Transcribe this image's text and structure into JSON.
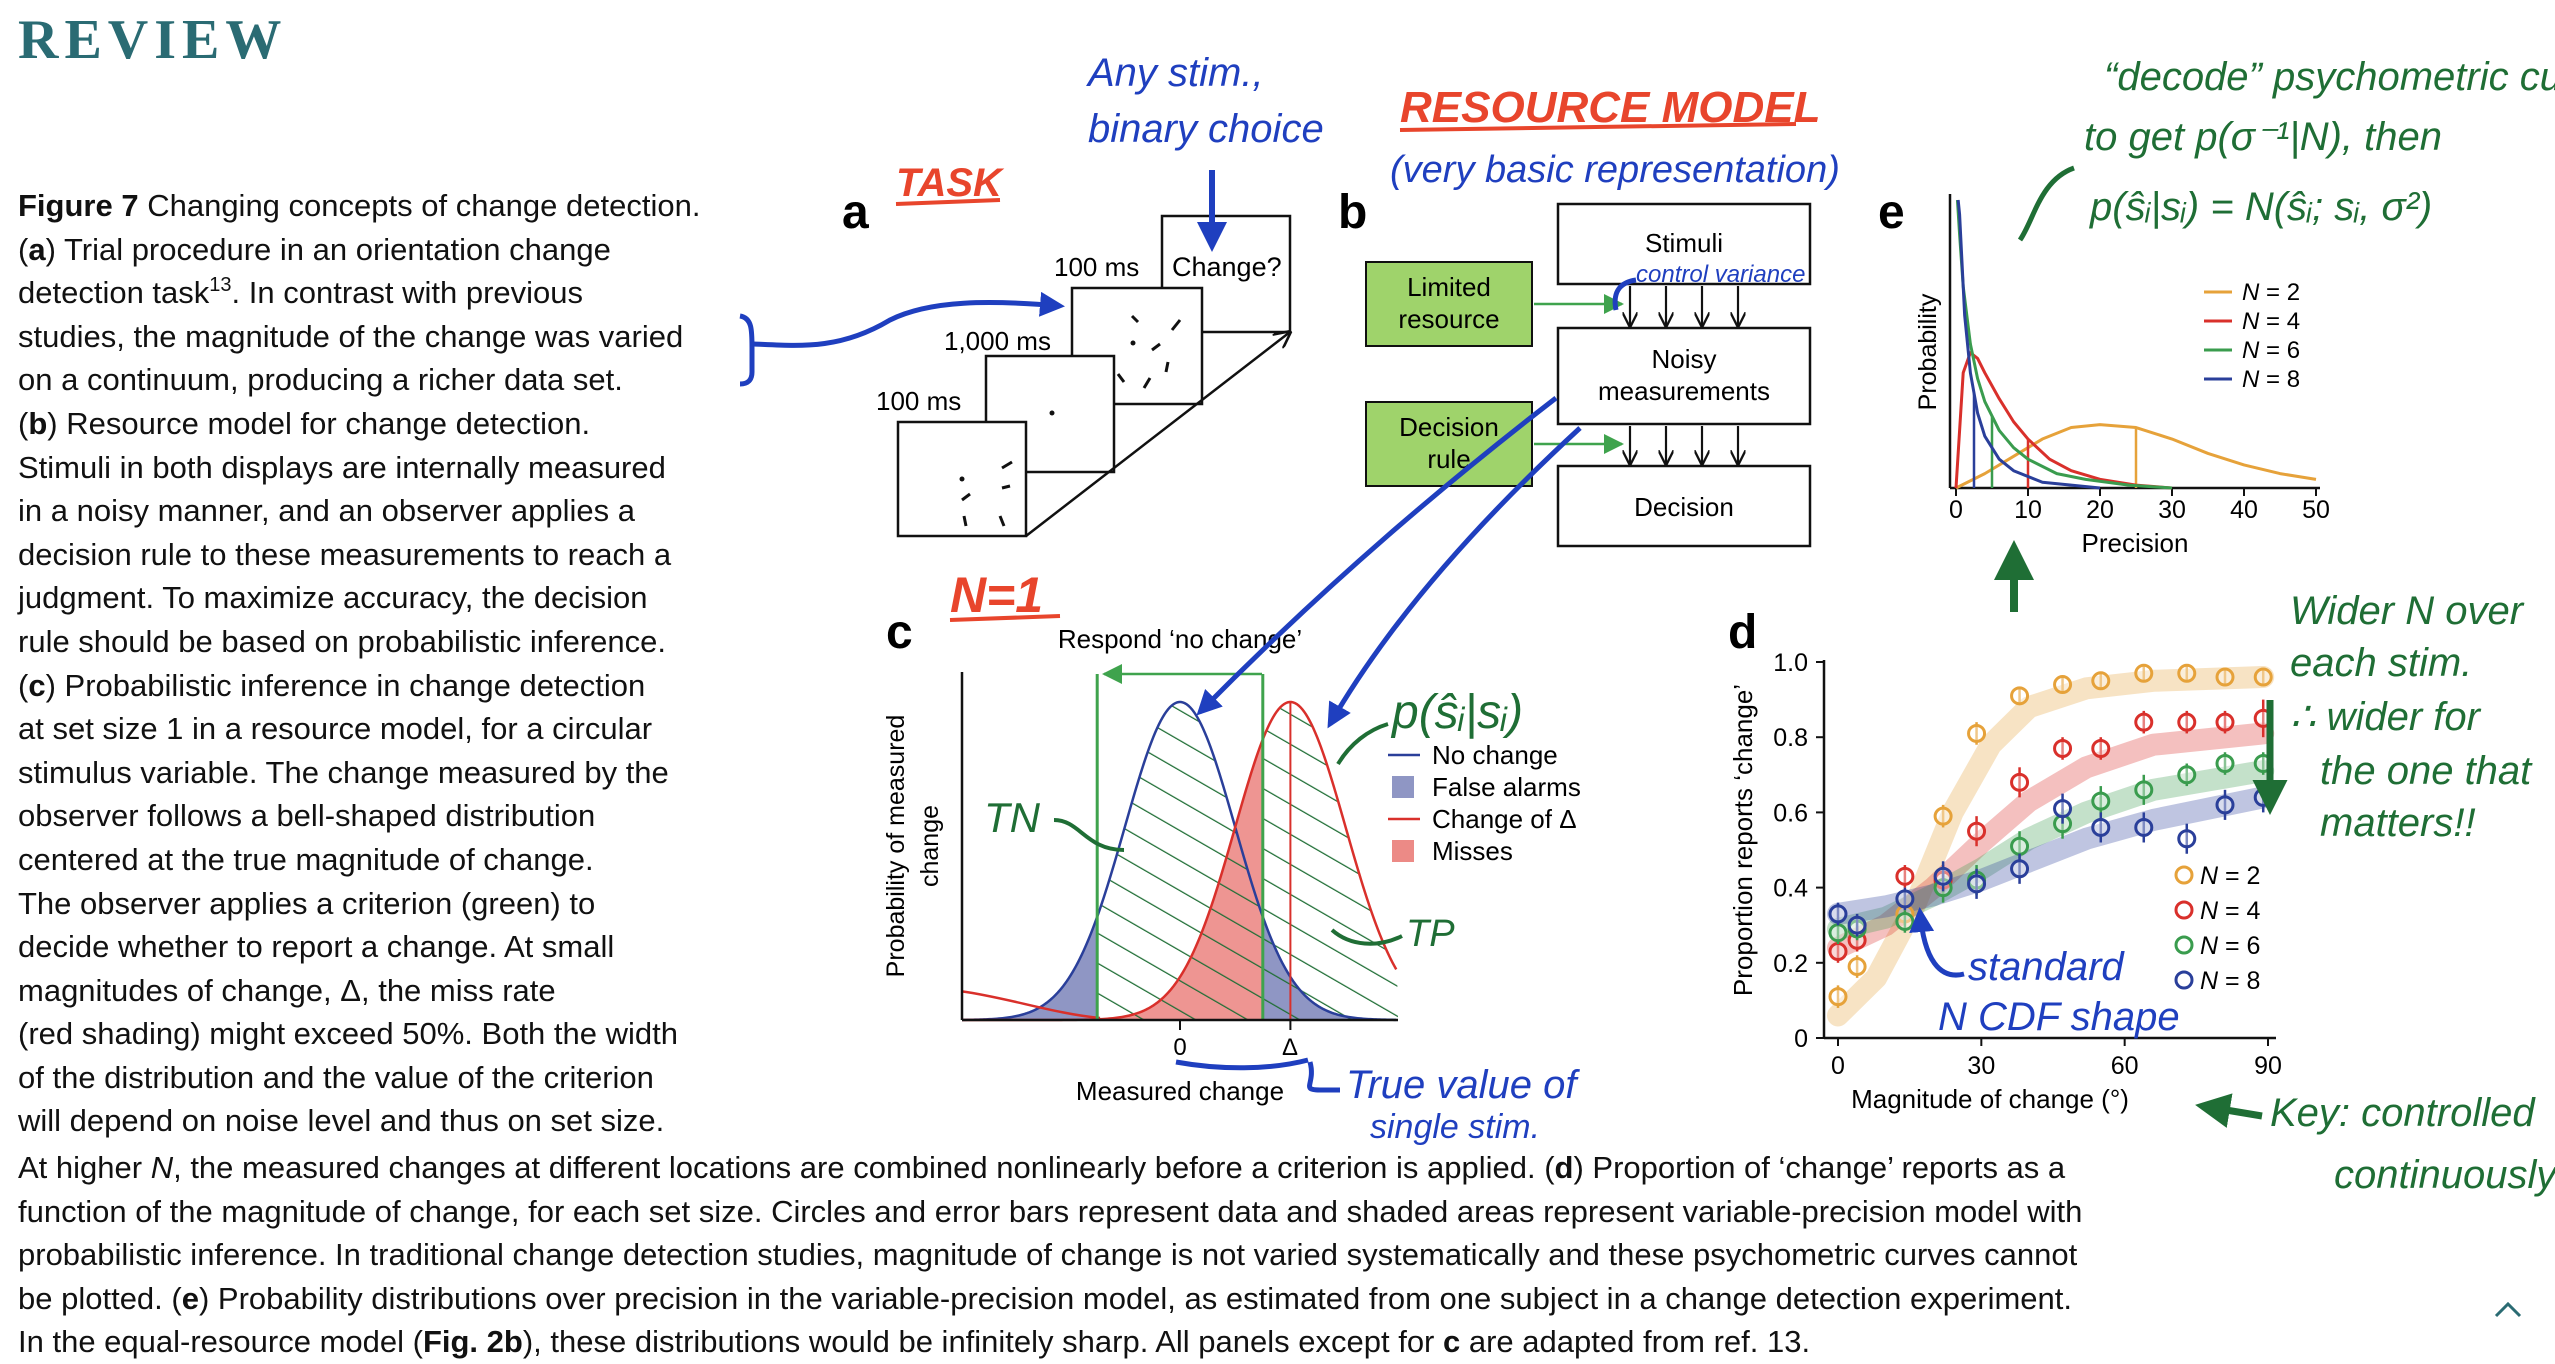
{
  "header": {
    "journal_section": "REVIEW"
  },
  "caption": {
    "side_lines": [
      [
        {
          "t": "Figure 7",
          "b": true
        },
        {
          "t": "  Changing concepts of change detection."
        }
      ],
      [
        {
          "t": "("
        },
        {
          "t": "a",
          "b": true
        },
        {
          "t": ") Trial procedure in an orientation change"
        }
      ],
      [
        {
          "t": "detection task"
        },
        {
          "t": "13",
          "sup": true
        },
        {
          "t": ". In contrast with previous"
        }
      ],
      [
        {
          "t": "studies, the magnitude of the change was varied"
        }
      ],
      [
        {
          "t": "on a continuum, producing a richer data set."
        }
      ],
      [
        {
          "t": "("
        },
        {
          "t": "b",
          "b": true
        },
        {
          "t": ") Resource model for change detection."
        }
      ],
      [
        {
          "t": "Stimuli in both displays are internally measured"
        }
      ],
      [
        {
          "t": "in a noisy manner, and an observer applies a"
        }
      ],
      [
        {
          "t": "decision rule to these measurements to reach a"
        }
      ],
      [
        {
          "t": "judgment. To maximize accuracy, the decision"
        }
      ],
      [
        {
          "t": "rule should be based on probabilistic inference."
        }
      ],
      [
        {
          "t": "("
        },
        {
          "t": "c",
          "b": true
        },
        {
          "t": ") Probabilistic inference in change detection"
        }
      ],
      [
        {
          "t": "at set size 1 in a resource model, for a circular"
        }
      ],
      [
        {
          "t": "stimulus variable. The change measured by the"
        }
      ],
      [
        {
          "t": "observer follows a bell-shaped distribution"
        }
      ],
      [
        {
          "t": "centered at the true magnitude of change."
        }
      ],
      [
        {
          "t": "The observer applies a criterion (green) to"
        }
      ],
      [
        {
          "t": "decide whether to report a change. At small"
        }
      ],
      [
        {
          "t": "magnitudes of change, Δ, the miss rate"
        }
      ],
      [
        {
          "t": "(red shading) might exceed 50%. Both the width"
        }
      ],
      [
        {
          "t": "of the distribution and the value of the criterion"
        }
      ],
      [
        {
          "t": "will depend on noise level and thus on set size."
        }
      ]
    ],
    "bottom_lines": [
      [
        {
          "t": "At higher "
        },
        {
          "t": "N",
          "i": true
        },
        {
          "t": ", the measured changes at different locations are combined nonlinearly before a criterion is applied. ("
        },
        {
          "t": "d",
          "b": true
        },
        {
          "t": ") Proportion of ‘change’ reports as a"
        }
      ],
      [
        {
          "t": "function of the magnitude of change, for each set size. Circles and error bars represent data and shaded areas represent variable-precision model with"
        }
      ],
      [
        {
          "t": "probabilistic inference. In traditional change detection studies, magnitude of change is not varied systematically and these psychometric curves cannot"
        }
      ],
      [
        {
          "t": "be plotted. ("
        },
        {
          "t": "e",
          "b": true
        },
        {
          "t": ") Probability distributions over precision in the variable-precision model, as estimated from one subject in a change detection experiment."
        }
      ],
      [
        {
          "t": "In the equal-resource model ("
        },
        {
          "t": "Fig. 2b",
          "b": true
        },
        {
          "t": "), these distributions would be infinitely sharp. All panels except for "
        },
        {
          "t": "c",
          "b": true
        },
        {
          "t": " are adapted from ref. 13."
        }
      ]
    ]
  },
  "panels": {
    "a": {
      "label": "a",
      "times": [
        "100 ms",
        "1,000 ms",
        "100 ms"
      ],
      "question": "Change?"
    },
    "b": {
      "label": "b",
      "stimuli": "Stimuli",
      "noisy": [
        "Noisy",
        "measurements"
      ],
      "decision": "Decision",
      "limited": [
        "Limited",
        "resource"
      ],
      "rule": [
        "Decision",
        "rule"
      ]
    },
    "c": {
      "label": "c",
      "respond": "Respond ‘no change’",
      "ylabel": [
        "Probability of measured",
        "change"
      ],
      "xlabel": "Measured change",
      "tick_zero": "0",
      "tick_delta": "Δ",
      "legend": [
        "No change",
        "False alarms",
        "Change of Δ",
        "Misses"
      ]
    },
    "d": {
      "label": "d",
      "ylabel": "Proportion reports ‘change’",
      "xlabel": "Magnitude of change (°)",
      "legend_prefix": "N",
      "legend_values": [
        "= 2",
        "= 4",
        "= 6",
        "= 8"
      ]
    },
    "e": {
      "label": "e",
      "ylabel": "Probability",
      "xlabel": "Precision",
      "legend_prefix": "N",
      "legend_values": [
        "= 2",
        "= 4",
        "= 6",
        "= 8"
      ]
    }
  },
  "colors": {
    "review": "#2a6b73",
    "n2": "#e6a23a",
    "n4": "#d9302b",
    "n6": "#3a9c4e",
    "n8": "#2a3f9a",
    "box_green": "#9fd36b",
    "ink_blue": "#1f3fbf",
    "ink_red": "#e8452c",
    "ink_green": "#1f6e35",
    "fa_fill": "#8f96c4",
    "miss_fill": "#ec8a86",
    "criterion": "#3fa34d"
  },
  "chart_data": [
    {
      "panel": "d",
      "type": "scatter",
      "xlabel": "Magnitude of change (°)",
      "ylabel": "Proportion reports ‘change’",
      "xlim": [
        0,
        90
      ],
      "ylim": [
        0,
        1
      ],
      "xticks": [
        0,
        30,
        60,
        90
      ],
      "yticks": [
        0,
        0.2,
        0.4,
        0.6,
        0.8,
        1.0
      ],
      "legend_position": "bottom-right",
      "series": [
        {
          "name": "N = 2",
          "color": "#e6a23a",
          "x": [
            0,
            4,
            14,
            22,
            29,
            38,
            47,
            55,
            64,
            73,
            81,
            89
          ],
          "y": [
            0.11,
            0.19,
            0.33,
            0.59,
            0.81,
            0.91,
            0.94,
            0.95,
            0.97,
            0.97,
            0.96,
            0.96
          ],
          "err": [
            0.03,
            0.03,
            0.03,
            0.03,
            0.03,
            0.02,
            0.02,
            0.02,
            0.02,
            0.02,
            0.02,
            0.02
          ],
          "model": [
            [
              0,
              0.06
            ],
            [
              8,
              0.16
            ],
            [
              16,
              0.35
            ],
            [
              24,
              0.6
            ],
            [
              32,
              0.78
            ],
            [
              40,
              0.88
            ],
            [
              52,
              0.93
            ],
            [
              66,
              0.95
            ],
            [
              89,
              0.96
            ]
          ]
        },
        {
          "name": "N = 4",
          "color": "#d9302b",
          "x": [
            0,
            4,
            14,
            22,
            29,
            38,
            47,
            55,
            64,
            73,
            81,
            89
          ],
          "y": [
            0.23,
            0.26,
            0.43,
            0.42,
            0.55,
            0.68,
            0.77,
            0.77,
            0.84,
            0.84,
            0.84,
            0.85
          ],
          "err": [
            0.03,
            0.03,
            0.03,
            0.04,
            0.04,
            0.04,
            0.03,
            0.03,
            0.03,
            0.03,
            0.03,
            0.05
          ],
          "model": [
            [
              0,
              0.24
            ],
            [
              10,
              0.3
            ],
            [
              20,
              0.4
            ],
            [
              30,
              0.52
            ],
            [
              40,
              0.63
            ],
            [
              52,
              0.72
            ],
            [
              66,
              0.78
            ],
            [
              89,
              0.81
            ]
          ]
        },
        {
          "name": "N = 6",
          "color": "#3a9c4e",
          "x": [
            0,
            4,
            14,
            22,
            29,
            38,
            47,
            55,
            64,
            73,
            81,
            89
          ],
          "y": [
            0.28,
            0.29,
            0.31,
            0.4,
            0.42,
            0.51,
            0.57,
            0.63,
            0.66,
            0.7,
            0.73,
            0.73
          ],
          "err": [
            0.03,
            0.03,
            0.03,
            0.04,
            0.04,
            0.04,
            0.04,
            0.04,
            0.04,
            0.03,
            0.03,
            0.03
          ],
          "model": [
            [
              0,
              0.29
            ],
            [
              10,
              0.32
            ],
            [
              20,
              0.38
            ],
            [
              30,
              0.45
            ],
            [
              40,
              0.53
            ],
            [
              52,
              0.6
            ],
            [
              66,
              0.66
            ],
            [
              89,
              0.71
            ]
          ]
        },
        {
          "name": "N = 8",
          "color": "#2a3f9a",
          "x": [
            0,
            4,
            14,
            22,
            29,
            38,
            47,
            55,
            64,
            73,
            81,
            89
          ],
          "y": [
            0.33,
            0.3,
            0.37,
            0.43,
            0.41,
            0.45,
            0.61,
            0.56,
            0.56,
            0.53,
            0.62,
            0.64
          ],
          "err": [
            0.03,
            0.03,
            0.03,
            0.04,
            0.04,
            0.04,
            0.04,
            0.04,
            0.04,
            0.04,
            0.04,
            0.04
          ],
          "model": [
            [
              0,
              0.33
            ],
            [
              10,
              0.35
            ],
            [
              20,
              0.38
            ],
            [
              30,
              0.42
            ],
            [
              40,
              0.47
            ],
            [
              52,
              0.53
            ],
            [
              66,
              0.58
            ],
            [
              89,
              0.64
            ]
          ]
        }
      ]
    },
    {
      "panel": "e",
      "type": "line",
      "xlabel": "Precision",
      "ylabel": "Probability",
      "xlim": [
        0,
        50
      ],
      "ylim": [
        0,
        1
      ],
      "xticks": [
        0,
        10,
        20,
        30,
        40,
        50
      ],
      "legend_position": "top-right",
      "series": [
        {
          "name": "N = 2",
          "color": "#e6a23a",
          "mean": 25,
          "x": [
            0,
            4,
            8,
            12,
            16,
            20,
            25,
            30,
            35,
            40,
            45,
            50
          ],
          "y": [
            0.0,
            0.05,
            0.11,
            0.17,
            0.21,
            0.22,
            0.21,
            0.17,
            0.12,
            0.08,
            0.05,
            0.03
          ]
        },
        {
          "name": "N = 4",
          "color": "#d9302b",
          "mean": 10,
          "x": [
            0,
            1,
            2,
            3,
            4,
            6,
            8,
            10,
            13,
            16,
            20,
            25,
            30
          ],
          "y": [
            0.0,
            0.4,
            0.47,
            0.45,
            0.4,
            0.31,
            0.23,
            0.17,
            0.1,
            0.06,
            0.03,
            0.01,
            0.0
          ]
        },
        {
          "name": "N = 6",
          "color": "#3a9c4e",
          "mean": 5,
          "x": [
            0.2,
            0.5,
            1,
            2,
            3,
            4,
            6,
            8,
            10,
            14,
            18,
            24,
            30
          ],
          "y": [
            1.0,
            0.88,
            0.7,
            0.5,
            0.38,
            0.3,
            0.2,
            0.14,
            0.1,
            0.05,
            0.03,
            0.01,
            0.0
          ]
        },
        {
          "name": "N = 8",
          "color": "#2a3f9a",
          "mean": 2.5,
          "x": [
            0.3,
            0.5,
            0.8,
            1.2,
            2,
            3,
            4,
            6,
            8,
            12,
            16,
            20
          ],
          "y": [
            1.0,
            0.95,
            0.8,
            0.6,
            0.4,
            0.26,
            0.18,
            0.1,
            0.06,
            0.02,
            0.01,
            0.0
          ]
        }
      ]
    },
    {
      "panel": "c",
      "type": "area",
      "xlabel": "Measured change",
      "ylabel": "Probability of measured change",
      "criterion_low": -0.9,
      "criterion_high": 0.9,
      "delta": 1.2,
      "series": [
        {
          "name": "No change",
          "color": "#2a3f9a",
          "mean": 0,
          "sd": 0.6
        },
        {
          "name": "Change of Δ",
          "color": "#d9302b",
          "mean": 1.2,
          "sd": 0.6
        }
      ]
    }
  ],
  "annotations": {
    "task": "TASK",
    "any_stim": [
      "Any stim.,",
      "binary choice"
    ],
    "resource_model": "RESOURCE MODEL",
    "very_basic": "(very basic representation)",
    "control_variance": "control variance",
    "n1": "N=1",
    "p_si": "p(ŝᵢ|sᵢ)",
    "tn": "TN",
    "tp": "TP",
    "true_value": [
      "True value of",
      "single stim."
    ],
    "decode": [
      "“decode” psychometric curves,",
      "to get p(σ⁻¹|N), then",
      "p(ŝᵢ|sᵢ) = N(ŝᵢ; sᵢ, σ²)"
    ],
    "wider": [
      "Wider N over",
      "each stim.",
      "∴ wider for",
      "the one that",
      "matters!!"
    ],
    "standard": [
      "standard",
      "N CDF shape"
    ],
    "key": [
      "Key: controlled",
      "continuously"
    ]
  },
  "ui": {
    "scroll_up": "⌃"
  }
}
